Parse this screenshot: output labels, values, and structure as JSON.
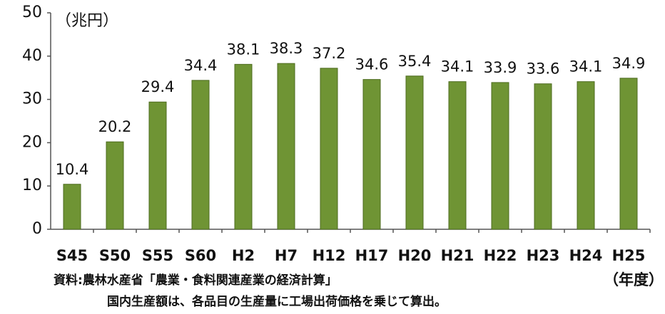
{
  "chart_data": {
    "type": "bar",
    "unit_label": "（兆円）",
    "categories": [
      "S45",
      "S50",
      "S55",
      "S60",
      "H2",
      "H7",
      "H12",
      "H17",
      "H20",
      "H21",
      "H22",
      "H23",
      "H24",
      "H25"
    ],
    "values": [
      10.4,
      20.2,
      29.4,
      34.4,
      38.1,
      38.3,
      37.2,
      34.6,
      35.4,
      34.1,
      33.9,
      33.6,
      34.1,
      34.9
    ],
    "color": "#6f9434",
    "ylim": [
      0,
      50
    ],
    "yticks": [
      0,
      10,
      20,
      30,
      40,
      50
    ],
    "x_axis_label": "（年度）",
    "source": "資料:農林水産省「農業・食料関連産業の経済計算」",
    "note": "国内生産額は、各品目の生産量に工場出荷価格を乗じて算出。"
  }
}
